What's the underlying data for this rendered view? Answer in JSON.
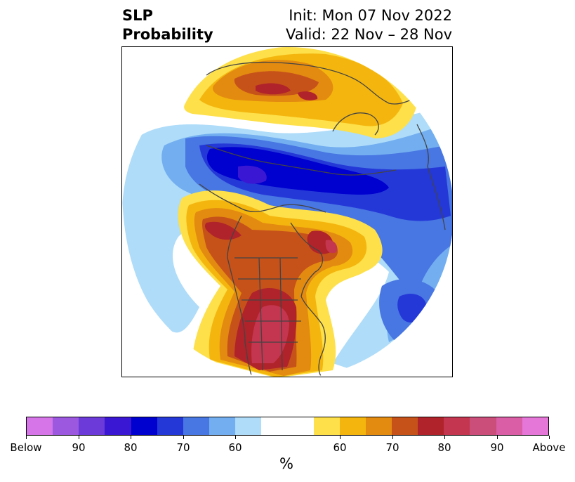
{
  "header": {
    "title_line1": "SLP",
    "title_line2": "Probability",
    "init": "Init: Mon 07 Nov 2022",
    "valid": "Valid: 22 Nov – 28 Nov"
  },
  "colorbar": {
    "colors": [
      "#d575e8",
      "#9c59e0",
      "#6b3ad8",
      "#3a17d2",
      "#0000cf",
      "#2438d8",
      "#4876e2",
      "#72aef0",
      "#aedcf9",
      "#ffffff",
      "#ffffff",
      "#fde04a",
      "#f4b60e",
      "#e38b10",
      "#c6521a",
      "#b0232a",
      "#c43650",
      "#ca4d7a",
      "#d95ea6",
      "#e577d8"
    ],
    "tick_labels": [
      "Below",
      "90",
      "80",
      "70",
      "60",
      "60",
      "70",
      "80",
      "90",
      "Above"
    ],
    "unit": "%"
  },
  "map": {
    "below_colors": {
      "b60": "#aedcf9",
      "b65": "#72aef0",
      "b70": "#4876e2",
      "b75": "#2438d8",
      "b80": "#0000cf",
      "b85": "#3a17d2"
    },
    "above_colors": {
      "a55": "#fde04a",
      "a60": "#f4b60e",
      "a65": "#e38b10",
      "a70": "#c6521a",
      "a75": "#b0232a",
      "a80": "#c43650"
    },
    "coast_color": "#444444"
  }
}
